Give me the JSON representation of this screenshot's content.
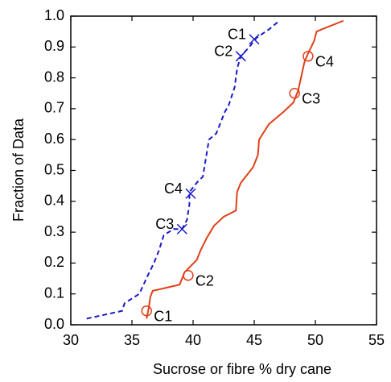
{
  "chart_data": {
    "type": "line",
    "xlabel": "Sucrose or fibre % dry cane",
    "ylabel": "Fraction of Data",
    "xlim": [
      30,
      55
    ],
    "xticks": [
      30,
      35,
      40,
      45,
      50,
      55
    ],
    "ylim": [
      0,
      1
    ],
    "yticks": [
      {
        "value": 0,
        "label": "0.0"
      },
      0.1,
      0.2,
      0.3,
      0.4,
      0.5,
      0.6,
      0.7,
      0.8,
      0.9,
      {
        "value": 1,
        "label": "1.0"
      }
    ],
    "series": [
      {
        "color": "#1a1acc",
        "dash": true,
        "x": [
          31.3,
          34.2,
          34.4,
          35.6,
          36.3,
          36.8,
          37.2,
          37.6,
          38.4,
          39.1,
          39.5,
          39.7,
          39.7,
          40.3,
          40.8,
          41.3,
          41.9,
          42.6,
          42.9,
          43.4,
          43.6,
          43.9,
          44.6,
          45.2,
          46.3,
          46.9
        ],
        "values": [
          0.02,
          0.045,
          0.07,
          0.1,
          0.16,
          0.2,
          0.24,
          0.29,
          0.31,
          0.31,
          0.34,
          0.39,
          0.43,
          0.46,
          0.48,
          0.6,
          0.62,
          0.69,
          0.71,
          0.77,
          0.83,
          0.87,
          0.9,
          0.93,
          0.96,
          0.98
        ],
        "markers": {
          "symbol": "x",
          "labels": [
            "C1",
            "C2",
            "C3",
            "C4"
          ],
          "x": [
            45.0,
            43.9,
            39.1,
            39.8
          ],
          "values": [
            0.925,
            0.87,
            0.31,
            0.425
          ]
        }
      },
      {
        "color": "#e0401a",
        "dash": false,
        "x": [
          36.2,
          36.4,
          36.5,
          36.7,
          38.9,
          39.3,
          40.3,
          40.6,
          41.1,
          41.7,
          42.5,
          43.5,
          43.6,
          43.9,
          44.9,
          45.3,
          45.4,
          46.2,
          47.4,
          48.2,
          48.6,
          49.1,
          49.3,
          49.9,
          50.1,
          50.7,
          52.3
        ],
        "values": [
          0.02,
          0.06,
          0.09,
          0.11,
          0.13,
          0.17,
          0.21,
          0.24,
          0.28,
          0.32,
          0.35,
          0.37,
          0.43,
          0.46,
          0.51,
          0.55,
          0.6,
          0.65,
          0.69,
          0.72,
          0.76,
          0.85,
          0.87,
          0.92,
          0.95,
          0.96,
          0.985
        ],
        "markers": {
          "symbol": "o",
          "labels": [
            "C1",
            "C2",
            "C3",
            "C4"
          ],
          "x": [
            36.2,
            39.6,
            48.3,
            49.4
          ],
          "values": [
            0.045,
            0.16,
            0.75,
            0.87
          ]
        }
      }
    ]
  }
}
